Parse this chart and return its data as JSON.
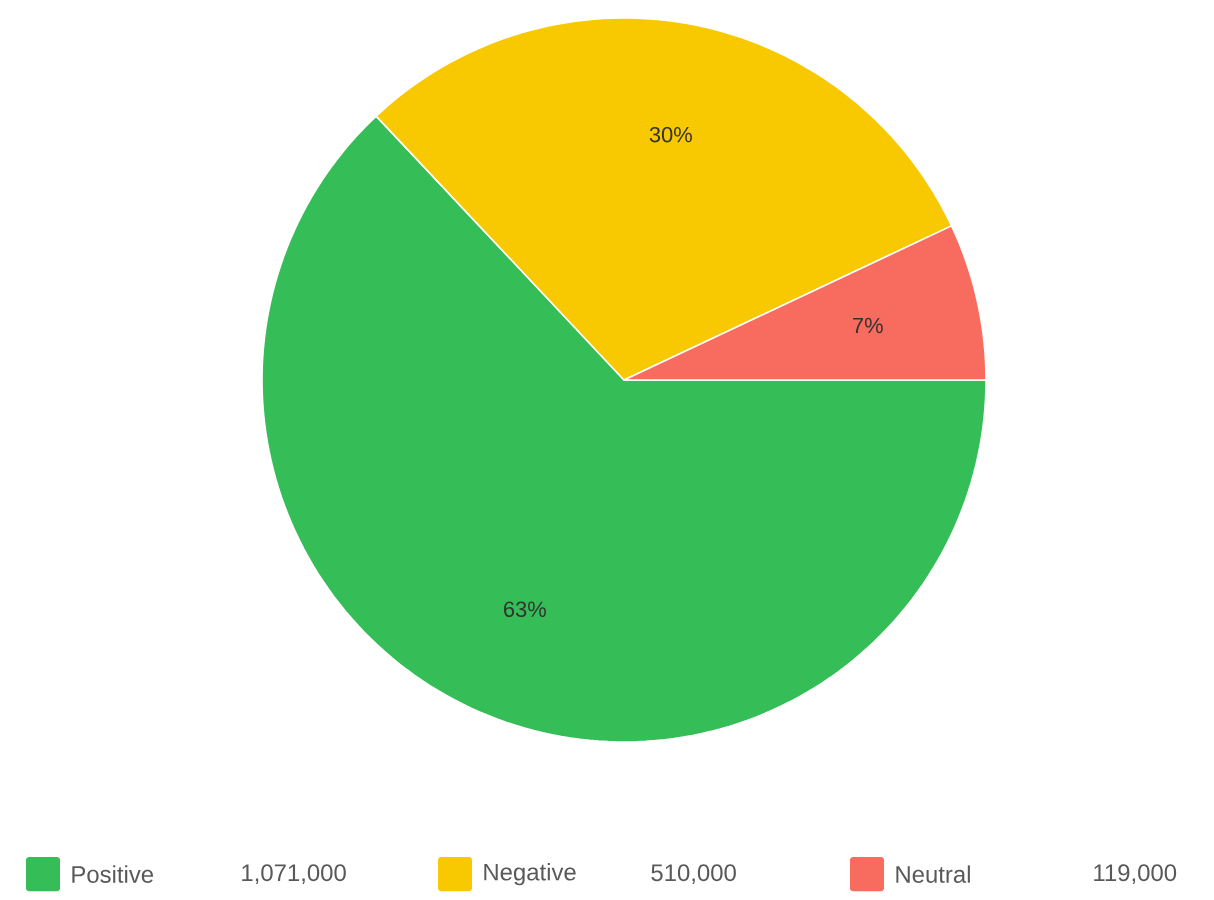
{
  "chart_data": {
    "type": "pie",
    "categories": [
      "Positive",
      "Negative",
      "Neutral"
    ],
    "values": [
      63,
      30,
      7
    ],
    "annotations": [
      "1,071,000",
      "510,000",
      "119,000"
    ],
    "colors": [
      "#35bd57",
      "#f8c800",
      "#f76c5e"
    ],
    "value_labels": [
      "63%",
      "30%",
      "7%"
    ],
    "legend": "bottom"
  }
}
